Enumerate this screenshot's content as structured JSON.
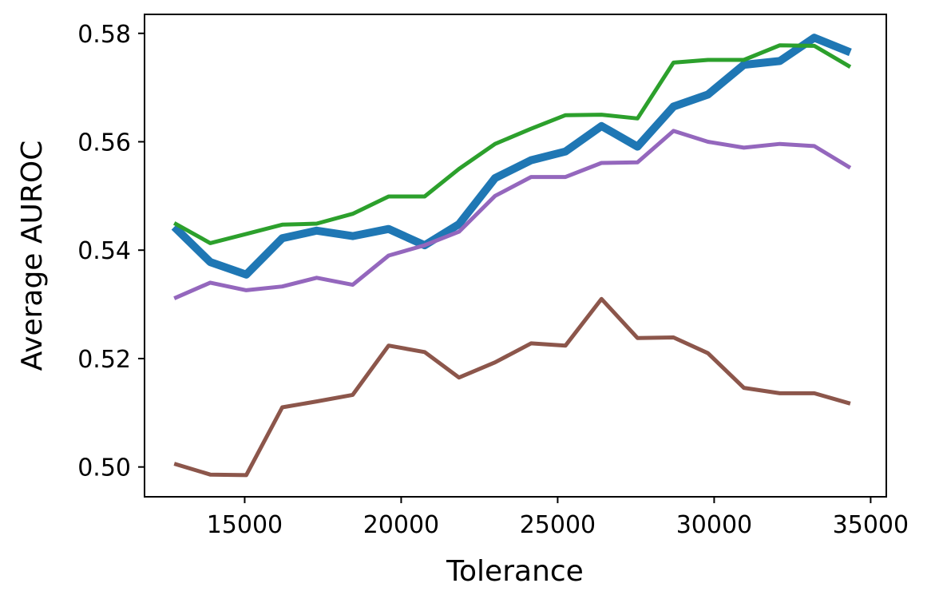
{
  "chart_data": {
    "type": "line",
    "title": "",
    "xlabel": "Tolerance",
    "ylabel": "Average AUROC",
    "xlim": [
      11800,
      35500
    ],
    "ylim": [
      0.4945,
      0.5835
    ],
    "xticks": [
      15000,
      20000,
      25000,
      30000,
      35000
    ],
    "xtick_labels": [
      "15000",
      "20000",
      "25000",
      "30000",
      "35000"
    ],
    "yticks": [
      0.5,
      0.52,
      0.54,
      0.56,
      0.58
    ],
    "ytick_labels": [
      "0.50",
      "0.52",
      "0.54",
      "0.56",
      "0.58"
    ],
    "grid": false,
    "legend": "none",
    "x": [
      12750,
      13900,
      15050,
      16200,
      17300,
      18450,
      19600,
      20750,
      21850,
      23000,
      24150,
      25250,
      26400,
      27550,
      28700,
      29800,
      30950,
      32100,
      33200,
      34350
    ],
    "series": [
      {
        "color": "#1f77b4",
        "line_weight": "thick",
        "values": [
          0.5443,
          0.5378,
          0.5355,
          0.5422,
          0.5436,
          0.5426,
          0.5439,
          0.5409,
          0.5448,
          0.5533,
          0.5566,
          0.5582,
          0.5629,
          0.5591,
          0.5665,
          0.5687,
          0.5742,
          0.5749,
          0.5792,
          0.5765
        ]
      },
      {
        "color": "#2ca02c",
        "line_weight": "normal",
        "values": [
          0.545,
          0.5413,
          0.543,
          0.5447,
          0.5449,
          0.5467,
          0.5499,
          0.5499,
          0.555,
          0.5596,
          0.5624,
          0.5649,
          0.565,
          0.5643,
          0.5746,
          0.5751,
          0.5751,
          0.5778,
          0.5777,
          0.5738
        ]
      },
      {
        "color": "#9467bd",
        "line_weight": "normal",
        "values": [
          0.5311,
          0.534,
          0.5326,
          0.5333,
          0.5349,
          0.5336,
          0.539,
          0.5409,
          0.5434,
          0.55,
          0.5535,
          0.5535,
          0.5561,
          0.5562,
          0.562,
          0.56,
          0.5589,
          0.5596,
          0.5592,
          0.5552
        ]
      },
      {
        "color": "#8c564b",
        "line_weight": "normal",
        "values": [
          0.5006,
          0.4986,
          0.4985,
          0.511,
          0.5121,
          0.5133,
          0.5224,
          0.5212,
          0.5165,
          0.5193,
          0.5228,
          0.5224,
          0.531,
          0.5238,
          0.5239,
          0.521,
          0.5146,
          0.5136,
          0.5136,
          0.5117
        ]
      }
    ]
  }
}
